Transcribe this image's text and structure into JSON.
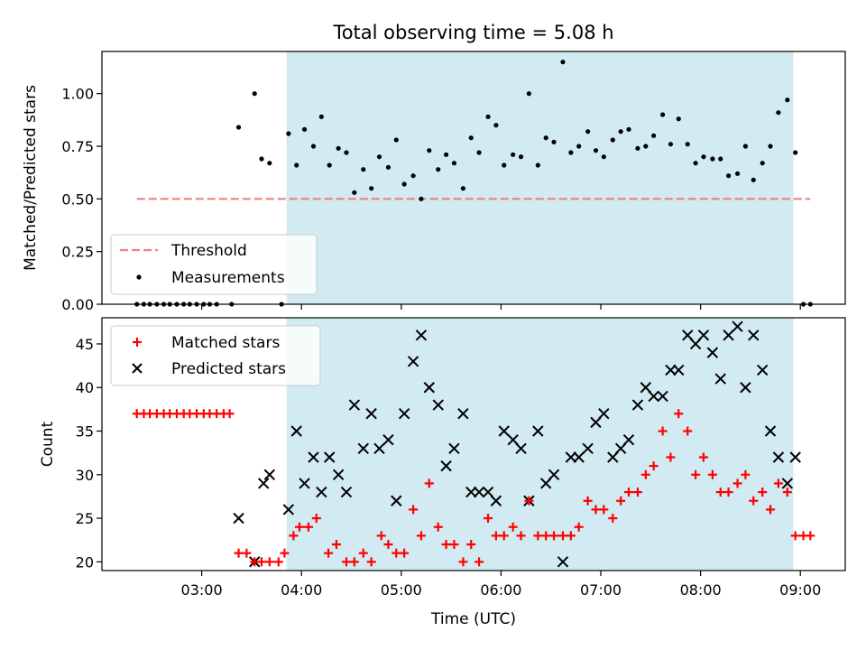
{
  "title": "Total observing time = 5.08 h",
  "xlabel": "Time (UTC)",
  "colors": {
    "shade": "#add8e6",
    "threshold": "#f08080",
    "measurement": "#000000",
    "matched": "#ff0000",
    "predicted": "#000000"
  },
  "chart_data": [
    {
      "type": "scatter",
      "panel": "top",
      "ylabel": "Matched/Predicted stars",
      "x_unit": "hours (UTC)",
      "xlim": [
        2.0,
        9.45
      ],
      "ylim": [
        0.0,
        1.2
      ],
      "yticks": [
        0.0,
        0.25,
        0.5,
        0.75,
        1.0
      ],
      "ytick_labels": [
        "0.00",
        "0.25",
        "0.50",
        "0.75",
        "1.00"
      ],
      "shaded_region": [
        3.85,
        8.93
      ],
      "legend_placement": "lower-left",
      "threshold": {
        "name": "Threshold",
        "value": 0.5,
        "x_range": [
          2.35,
          9.1
        ],
        "style": "dashed"
      },
      "series": [
        {
          "name": "Measurements",
          "points": [
            [
              2.35,
              0.0
            ],
            [
              2.42,
              0.0
            ],
            [
              2.48,
              0.0
            ],
            [
              2.55,
              0.0
            ],
            [
              2.62,
              0.0
            ],
            [
              2.68,
              0.0
            ],
            [
              2.75,
              0.0
            ],
            [
              2.82,
              0.0
            ],
            [
              2.88,
              0.0
            ],
            [
              2.95,
              0.0
            ],
            [
              3.02,
              0.0
            ],
            [
              3.08,
              0.0
            ],
            [
              3.15,
              0.0
            ],
            [
              3.3,
              0.0
            ],
            [
              3.8,
              0.0
            ],
            [
              3.37,
              0.84
            ],
            [
              3.53,
              1.0
            ],
            [
              3.6,
              0.69
            ],
            [
              3.68,
              0.67
            ],
            [
              3.87,
              0.81
            ],
            [
              3.95,
              0.66
            ],
            [
              4.03,
              0.83
            ],
            [
              4.12,
              0.75
            ],
            [
              4.2,
              0.89
            ],
            [
              4.28,
              0.66
            ],
            [
              4.37,
              0.74
            ],
            [
              4.45,
              0.72
            ],
            [
              4.53,
              0.53
            ],
            [
              4.62,
              0.64
            ],
            [
              4.7,
              0.55
            ],
            [
              4.78,
              0.7
            ],
            [
              4.87,
              0.65
            ],
            [
              4.95,
              0.78
            ],
            [
              5.03,
              0.57
            ],
            [
              5.12,
              0.61
            ],
            [
              5.2,
              0.5
            ],
            [
              5.28,
              0.73
            ],
            [
              5.37,
              0.64
            ],
            [
              5.45,
              0.71
            ],
            [
              5.53,
              0.67
            ],
            [
              5.62,
              0.55
            ],
            [
              5.7,
              0.79
            ],
            [
              5.78,
              0.72
            ],
            [
              5.87,
              0.89
            ],
            [
              5.95,
              0.85
            ],
            [
              6.03,
              0.66
            ],
            [
              6.12,
              0.71
            ],
            [
              6.2,
              0.7
            ],
            [
              6.28,
              1.0
            ],
            [
              6.37,
              0.66
            ],
            [
              6.45,
              0.79
            ],
            [
              6.53,
              0.77
            ],
            [
              6.62,
              1.15
            ],
            [
              6.7,
              0.72
            ],
            [
              6.78,
              0.75
            ],
            [
              6.87,
              0.82
            ],
            [
              6.95,
              0.73
            ],
            [
              7.03,
              0.7
            ],
            [
              7.12,
              0.78
            ],
            [
              7.2,
              0.82
            ],
            [
              7.28,
              0.83
            ],
            [
              7.37,
              0.74
            ],
            [
              7.45,
              0.75
            ],
            [
              7.53,
              0.8
            ],
            [
              7.62,
              0.9
            ],
            [
              7.7,
              0.76
            ],
            [
              7.78,
              0.88
            ],
            [
              7.87,
              0.76
            ],
            [
              7.95,
              0.67
            ],
            [
              8.03,
              0.7
            ],
            [
              8.12,
              0.69
            ],
            [
              8.2,
              0.69
            ],
            [
              8.28,
              0.61
            ],
            [
              8.37,
              0.62
            ],
            [
              8.45,
              0.75
            ],
            [
              8.53,
              0.59
            ],
            [
              8.62,
              0.67
            ],
            [
              8.7,
              0.75
            ],
            [
              8.78,
              0.91
            ],
            [
              8.87,
              0.97
            ],
            [
              8.95,
              0.72
            ],
            [
              9.03,
              0.0
            ],
            [
              9.1,
              0.0
            ]
          ]
        }
      ]
    },
    {
      "type": "scatter",
      "panel": "bottom",
      "ylabel": "Count",
      "x_unit": "hours (UTC)",
      "xlim": [
        2.0,
        9.45
      ],
      "ylim": [
        19.0,
        48.0
      ],
      "yticks": [
        20,
        25,
        30,
        35,
        40,
        45
      ],
      "ytick_labels": [
        "20",
        "25",
        "30",
        "35",
        "40",
        "45"
      ],
      "xticks": [
        3,
        4,
        5,
        6,
        7,
        8,
        9
      ],
      "xtick_labels": [
        "03:00",
        "04:00",
        "05:00",
        "06:00",
        "07:00",
        "08:00",
        "09:00"
      ],
      "shaded_region": [
        3.85,
        8.93
      ],
      "legend_placement": "upper-left",
      "series": [
        {
          "name": "Matched stars",
          "marker": "plus",
          "points": [
            [
              2.35,
              37
            ],
            [
              2.42,
              37
            ],
            [
              2.48,
              37
            ],
            [
              2.55,
              37
            ],
            [
              2.62,
              37
            ],
            [
              2.68,
              37
            ],
            [
              2.75,
              37
            ],
            [
              2.82,
              37
            ],
            [
              2.88,
              37
            ],
            [
              2.95,
              37
            ],
            [
              3.02,
              37
            ],
            [
              3.08,
              37
            ],
            [
              3.15,
              37
            ],
            [
              3.22,
              37
            ],
            [
              3.28,
              37
            ],
            [
              3.37,
              21
            ],
            [
              3.45,
              21
            ],
            [
              3.53,
              20
            ],
            [
              3.6,
              20
            ],
            [
              3.68,
              20
            ],
            [
              3.77,
              20
            ],
            [
              3.83,
              21
            ],
            [
              3.92,
              23
            ],
            [
              3.98,
              24
            ],
            [
              4.07,
              24
            ],
            [
              4.15,
              25
            ],
            [
              4.27,
              21
            ],
            [
              4.35,
              22
            ],
            [
              4.45,
              20
            ],
            [
              4.53,
              20
            ],
            [
              4.62,
              21
            ],
            [
              4.7,
              20
            ],
            [
              4.8,
              23
            ],
            [
              4.87,
              22
            ],
            [
              4.95,
              21
            ],
            [
              5.03,
              21
            ],
            [
              5.12,
              26
            ],
            [
              5.2,
              23
            ],
            [
              5.28,
              29
            ],
            [
              5.37,
              24
            ],
            [
              5.45,
              22
            ],
            [
              5.53,
              22
            ],
            [
              5.62,
              20
            ],
            [
              5.7,
              22
            ],
            [
              5.78,
              20
            ],
            [
              5.87,
              25
            ],
            [
              5.95,
              23
            ],
            [
              6.03,
              23
            ],
            [
              6.12,
              24
            ],
            [
              6.2,
              23
            ],
            [
              6.28,
              27
            ],
            [
              6.37,
              23
            ],
            [
              6.45,
              23
            ],
            [
              6.53,
              23
            ],
            [
              6.62,
              23
            ],
            [
              6.7,
              23
            ],
            [
              6.78,
              24
            ],
            [
              6.87,
              27
            ],
            [
              6.95,
              26
            ],
            [
              7.03,
              26
            ],
            [
              7.12,
              25
            ],
            [
              7.2,
              27
            ],
            [
              7.28,
              28
            ],
            [
              7.37,
              28
            ],
            [
              7.45,
              30
            ],
            [
              7.53,
              31
            ],
            [
              7.62,
              35
            ],
            [
              7.7,
              32
            ],
            [
              7.78,
              37
            ],
            [
              7.87,
              35
            ],
            [
              7.95,
              30
            ],
            [
              8.03,
              32
            ],
            [
              8.12,
              30
            ],
            [
              8.2,
              28
            ],
            [
              8.28,
              28
            ],
            [
              8.37,
              29
            ],
            [
              8.45,
              30
            ],
            [
              8.53,
              27
            ],
            [
              8.62,
              28
            ],
            [
              8.7,
              26
            ],
            [
              8.78,
              29
            ],
            [
              8.87,
              28
            ],
            [
              8.95,
              23
            ],
            [
              9.03,
              23
            ],
            [
              9.1,
              23
            ]
          ]
        },
        {
          "name": "Predicted stars",
          "marker": "x",
          "points": [
            [
              3.37,
              25
            ],
            [
              3.53,
              20
            ],
            [
              3.62,
              29
            ],
            [
              3.68,
              30
            ],
            [
              3.87,
              26
            ],
            [
              3.95,
              35
            ],
            [
              4.03,
              29
            ],
            [
              4.12,
              32
            ],
            [
              4.2,
              28
            ],
            [
              4.28,
              32
            ],
            [
              4.37,
              30
            ],
            [
              4.45,
              28
            ],
            [
              4.53,
              38
            ],
            [
              4.62,
              33
            ],
            [
              4.7,
              37
            ],
            [
              4.78,
              33
            ],
            [
              4.87,
              34
            ],
            [
              4.95,
              27
            ],
            [
              5.03,
              37
            ],
            [
              5.12,
              43
            ],
            [
              5.2,
              46
            ],
            [
              5.28,
              40
            ],
            [
              5.37,
              38
            ],
            [
              5.45,
              31
            ],
            [
              5.53,
              33
            ],
            [
              5.62,
              37
            ],
            [
              5.7,
              28
            ],
            [
              5.78,
              28
            ],
            [
              5.87,
              28
            ],
            [
              5.95,
              27
            ],
            [
              6.03,
              35
            ],
            [
              6.12,
              34
            ],
            [
              6.2,
              33
            ],
            [
              6.28,
              27
            ],
            [
              6.37,
              35
            ],
            [
              6.45,
              29
            ],
            [
              6.53,
              30
            ],
            [
              6.62,
              20
            ],
            [
              6.7,
              32
            ],
            [
              6.78,
              32
            ],
            [
              6.87,
              33
            ],
            [
              6.95,
              36
            ],
            [
              7.03,
              37
            ],
            [
              7.12,
              32
            ],
            [
              7.2,
              33
            ],
            [
              7.28,
              34
            ],
            [
              7.37,
              38
            ],
            [
              7.45,
              40
            ],
            [
              7.53,
              39
            ],
            [
              7.62,
              39
            ],
            [
              7.7,
              42
            ],
            [
              7.78,
              42
            ],
            [
              7.87,
              46
            ],
            [
              7.95,
              45
            ],
            [
              8.03,
              46
            ],
            [
              8.12,
              44
            ],
            [
              8.2,
              41
            ],
            [
              8.28,
              46
            ],
            [
              8.37,
              47
            ],
            [
              8.45,
              40
            ],
            [
              8.53,
              46
            ],
            [
              8.62,
              42
            ],
            [
              8.7,
              35
            ],
            [
              8.78,
              32
            ],
            [
              8.87,
              29
            ],
            [
              8.95,
              32
            ]
          ]
        }
      ]
    }
  ]
}
